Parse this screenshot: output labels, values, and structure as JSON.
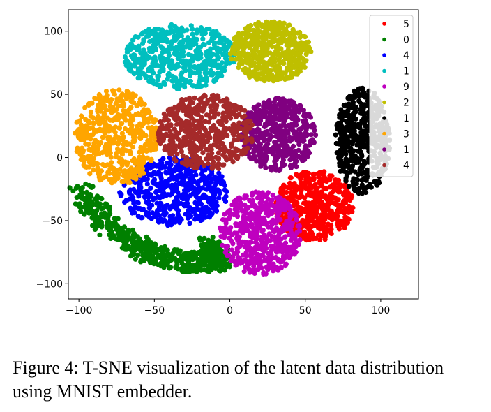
{
  "caption": "Figure 4: T-SNE visualization of the latent data distribution using MNIST embedder.",
  "chart_data": {
    "type": "scatter",
    "title": "",
    "xlabel": "",
    "ylabel": "",
    "xlim": [
      -107,
      125
    ],
    "ylim": [
      -112,
      117
    ],
    "xticks": [
      -100,
      -50,
      0,
      50,
      100
    ],
    "yticks": [
      -100,
      -50,
      0,
      50,
      100
    ],
    "xtick_labels": [
      "−100",
      "−50",
      "0",
      "50",
      "100"
    ],
    "ytick_labels": [
      "−100",
      "−50",
      "0",
      "50",
      "100"
    ],
    "grid": false,
    "legend_position": "top-right",
    "series": [
      {
        "name": "5",
        "color": "#ff0000",
        "cluster": {
          "cx": 56,
          "cy": -38,
          "rx": 26,
          "ry": 28
        }
      },
      {
        "name": "0",
        "color": "#008000",
        "cluster": {
          "type": "arc",
          "points": [
            [
              -100,
              -27
            ],
            [
              -80,
              -55
            ],
            [
              -55,
              -75
            ],
            [
              -30,
              -83
            ],
            [
              -5,
              -82
            ],
            [
              -15,
              -70
            ]
          ]
        }
      },
      {
        "name": "4",
        "color": "#0000ff",
        "cluster": {
          "cx": -37,
          "cy": -27,
          "rx": 36,
          "ry": 27
        }
      },
      {
        "name": "1",
        "color": "#00bfbf",
        "cluster": {
          "cx": -33,
          "cy": 80,
          "rx": 37,
          "ry": 26
        }
      },
      {
        "name": "9",
        "color": "#bf00bf",
        "cluster": {
          "cx": 20,
          "cy": -60,
          "rx": 27,
          "ry": 33
        }
      },
      {
        "name": "2",
        "color": "#bfbf00",
        "cluster": {
          "cx": 27,
          "cy": 84,
          "rx": 27,
          "ry": 24
        }
      },
      {
        "name": "1",
        "color": "#000000",
        "cluster": {
          "cx": 88,
          "cy": 13,
          "rx": 18,
          "ry": 42
        }
      },
      {
        "name": "3",
        "color": "#ffa500",
        "cluster": {
          "cx": -75,
          "cy": 16,
          "rx": 28,
          "ry": 38
        }
      },
      {
        "name": "1",
        "color": "#800080",
        "cluster": {
          "cx": 32,
          "cy": 18,
          "rx": 25,
          "ry": 29
        }
      },
      {
        "name": "4",
        "color": "#a52a2a",
        "cluster": {
          "cx": -16,
          "cy": 20,
          "rx": 32,
          "ry": 30
        }
      }
    ]
  }
}
